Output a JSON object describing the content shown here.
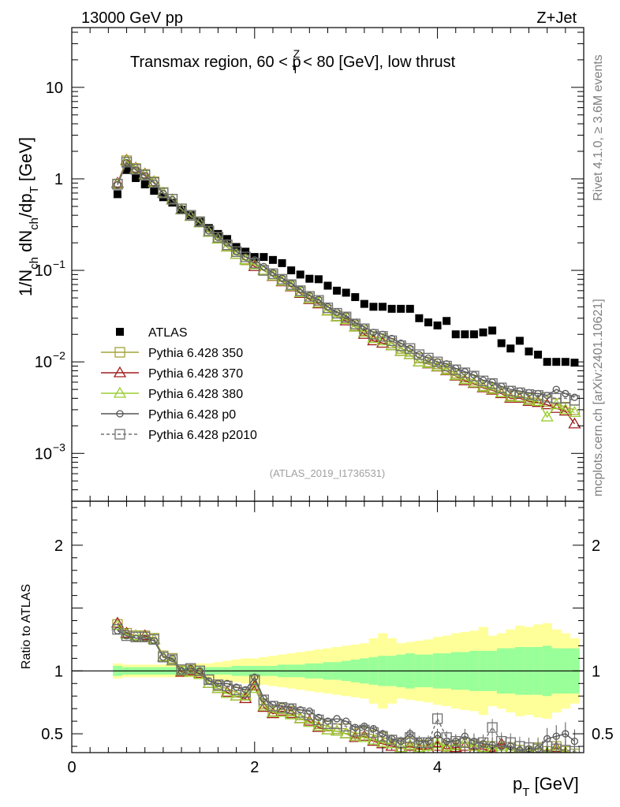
{
  "header": {
    "energy": "13000 GeV pp",
    "process": "Z+Jet"
  },
  "side_labels": {
    "rivet": "Rivet 4.1.0, ≥ 3.6M events",
    "mcplots": "mcplots.cern.ch [arXiv:2401.10621]"
  },
  "chart_data": [
    {
      "type": "scatter",
      "title": "Transmax region, 60 < p_T^Z < 80 [GeV], low thrust",
      "title_parts": [
        "Transmax region, 60 < p",
        "Z",
        "T",
        " < 80 [GeV], low thrust"
      ],
      "ylabel": "1/N_ch dN_ch/dp_T [GeV]",
      "ylabel_parts": [
        "1/N",
        "ch",
        " dN",
        "ch",
        "/dp",
        "T",
        " [GeV]"
      ],
      "xlim": [
        0,
        5.6
      ],
      "ylim": [
        0.0003,
        45
      ],
      "yscale": "log",
      "y_ticks": [
        {
          "v": 10,
          "label": "10"
        },
        {
          "v": 1,
          "label": "1"
        },
        {
          "v": 0.1,
          "label": "10",
          "exp": "−1"
        },
        {
          "v": 0.01,
          "label": "10",
          "exp": "−2"
        },
        {
          "v": 0.001,
          "label": "10",
          "exp": "−3"
        }
      ],
      "x": [
        0.5,
        0.6,
        0.7,
        0.8,
        0.9,
        1.0,
        1.1,
        1.2,
        1.3,
        1.4,
        1.5,
        1.6,
        1.7,
        1.8,
        1.9,
        2.0,
        2.1,
        2.2,
        2.3,
        2.4,
        2.5,
        2.6,
        2.7,
        2.8,
        2.9,
        3.0,
        3.1,
        3.2,
        3.3,
        3.4,
        3.5,
        3.6,
        3.7,
        3.8,
        3.9,
        4.0,
        4.1,
        4.2,
        4.3,
        4.4,
        4.5,
        4.6,
        4.7,
        4.8,
        4.9,
        5.0,
        5.1,
        5.2,
        5.3,
        5.4,
        5.5
      ],
      "series": [
        {
          "name": "ATLAS",
          "color": "#000000",
          "marker": "filled-square",
          "values": [
            0.68,
            1.25,
            1.02,
            0.87,
            0.74,
            0.63,
            0.55,
            0.46,
            0.4,
            0.34,
            0.29,
            0.25,
            0.22,
            0.18,
            0.16,
            0.14,
            0.14,
            0.13,
            0.12,
            0.1,
            0.09,
            0.081,
            0.08,
            0.068,
            0.06,
            0.057,
            0.051,
            0.043,
            0.04,
            0.04,
            0.038,
            0.038,
            0.038,
            0.03,
            0.027,
            0.025,
            0.028,
            0.02,
            0.02,
            0.02,
            0.021,
            0.022,
            0.016,
            0.014,
            0.017,
            0.013,
            0.012,
            0.01,
            0.01,
            0.01,
            0.0098
          ]
        },
        {
          "name": "Pythia 6.428 350",
          "color": "#a3a33a",
          "marker": "open-square",
          "values": [
            0.88,
            1.58,
            1.3,
            1.12,
            0.93,
            0.71,
            0.6,
            0.47,
            0.4,
            0.34,
            0.27,
            0.23,
            0.19,
            0.16,
            0.13,
            0.12,
            0.1,
            0.088,
            0.077,
            0.068,
            0.058,
            0.05,
            0.045,
            0.037,
            0.032,
            0.03,
            0.025,
            0.022,
            0.019,
            0.018,
            0.016,
            0.014,
            0.013,
            0.011,
            0.01,
            0.0095,
            0.0085,
            0.0075,
            0.0068,
            0.0063,
            0.0055,
            0.0052,
            0.0047,
            0.0043,
            0.0042,
            0.004,
            0.004,
            0.0037,
            0.0035,
            0.0032,
            0.003
          ]
        },
        {
          "name": "Pythia 6.428 370",
          "color": "#a01e1e",
          "marker": "open-triangle",
          "values": [
            0.9,
            1.6,
            1.31,
            1.13,
            0.93,
            0.7,
            0.59,
            0.46,
            0.39,
            0.33,
            0.26,
            0.22,
            0.18,
            0.15,
            0.13,
            0.11,
            0.1,
            0.086,
            0.075,
            0.066,
            0.056,
            0.048,
            0.043,
            0.036,
            0.031,
            0.028,
            0.024,
            0.02,
            0.017,
            0.016,
            0.015,
            0.013,
            0.012,
            0.01,
            0.0095,
            0.0088,
            0.008,
            0.007,
            0.0062,
            0.0058,
            0.0052,
            0.0049,
            0.0045,
            0.004,
            0.004,
            0.0037,
            0.0036,
            0.0034,
            0.0031,
            0.0029,
            0.0021
          ]
        },
        {
          "name": "Pythia 6.428 380",
          "color": "#9acd32",
          "marker": "open-triangle",
          "values": [
            0.88,
            1.57,
            1.29,
            1.11,
            0.92,
            0.7,
            0.59,
            0.46,
            0.39,
            0.33,
            0.26,
            0.22,
            0.18,
            0.15,
            0.13,
            0.115,
            0.1,
            0.087,
            0.076,
            0.067,
            0.057,
            0.049,
            0.044,
            0.036,
            0.031,
            0.029,
            0.024,
            0.021,
            0.018,
            0.017,
            0.015,
            0.013,
            0.012,
            0.01,
            0.0096,
            0.0089,
            0.0081,
            0.0071,
            0.0064,
            0.0059,
            0.0053,
            0.005,
            0.0046,
            0.0041,
            0.0041,
            0.0038,
            0.0037,
            0.0025,
            0.0034,
            0.003,
            0.0028
          ]
        },
        {
          "name": "Pythia 6.428 p0",
          "color": "#555555",
          "marker": "open-circle",
          "values": [
            0.86,
            1.5,
            1.25,
            1.08,
            0.9,
            0.69,
            0.59,
            0.47,
            0.4,
            0.34,
            0.27,
            0.23,
            0.2,
            0.16,
            0.14,
            0.13,
            0.11,
            0.094,
            0.082,
            0.072,
            0.062,
            0.053,
            0.048,
            0.04,
            0.035,
            0.032,
            0.027,
            0.024,
            0.021,
            0.02,
            0.018,
            0.016,
            0.014,
            0.012,
            0.011,
            0.01,
            0.0095,
            0.0085,
            0.0078,
            0.0072,
            0.0063,
            0.006,
            0.0054,
            0.005,
            0.0048,
            0.0046,
            0.0045,
            0.0043,
            0.005,
            0.0045,
            0.0041
          ]
        },
        {
          "name": "Pythia 6.428 p2010",
          "color": "#707070",
          "marker": "open-square",
          "dashed": true,
          "values": [
            0.87,
            1.52,
            1.27,
            1.1,
            0.91,
            0.7,
            0.6,
            0.47,
            0.4,
            0.34,
            0.27,
            0.23,
            0.19,
            0.16,
            0.14,
            0.12,
            0.1,
            0.092,
            0.08,
            0.07,
            0.06,
            0.052,
            0.047,
            0.039,
            0.034,
            0.031,
            0.026,
            0.023,
            0.02,
            0.019,
            0.017,
            0.015,
            0.014,
            0.012,
            0.011,
            0.01,
            0.009,
            0.0082,
            0.0076,
            0.007,
            0.0062,
            0.0058,
            0.0052,
            0.0048,
            0.0046,
            0.0044,
            0.0043,
            0.0041,
            0.004,
            0.004,
            0.0038
          ]
        }
      ],
      "watermark": "(ATLAS_2019_I1736531)"
    },
    {
      "type": "line",
      "ylabel": "Ratio to ATLAS",
      "xlabel": "p_T [GeV]",
      "xlabel_parts": [
        "p",
        "T",
        " [GeV]"
      ],
      "xlim": [
        0,
        5.6
      ],
      "ylim": [
        0.35,
        2.35
      ],
      "x_ticks": [
        {
          "v": 0,
          "label": "0"
        },
        {
          "v": 2,
          "label": "2"
        },
        {
          "v": 4,
          "label": "4"
        }
      ],
      "y_ticks": [
        {
          "v": 0.5,
          "label": "0.5"
        },
        {
          "v": 1,
          "label": "1"
        },
        {
          "v": 2,
          "label": "2"
        }
      ],
      "reference_line": 1.0,
      "band_stat_halfwidth": [
        0.04,
        0.03,
        0.03,
        0.03,
        0.03,
        0.03,
        0.03,
        0.03,
        0.03,
        0.03,
        0.03,
        0.03,
        0.03,
        0.04,
        0.04,
        0.04,
        0.04,
        0.04,
        0.05,
        0.05,
        0.05,
        0.06,
        0.06,
        0.07,
        0.07,
        0.08,
        0.09,
        0.1,
        0.11,
        0.12,
        0.12,
        0.13,
        0.14,
        0.13,
        0.13,
        0.14,
        0.14,
        0.15,
        0.15,
        0.16,
        0.16,
        0.16,
        0.18,
        0.18,
        0.19,
        0.19,
        0.19,
        0.2,
        0.18,
        0.18,
        0.18
      ],
      "band_total_halfwidth": [
        0.06,
        0.05,
        0.05,
        0.05,
        0.05,
        0.05,
        0.05,
        0.05,
        0.05,
        0.06,
        0.06,
        0.07,
        0.08,
        0.09,
        0.1,
        0.1,
        0.11,
        0.12,
        0.13,
        0.14,
        0.15,
        0.16,
        0.17,
        0.18,
        0.19,
        0.2,
        0.21,
        0.22,
        0.26,
        0.3,
        0.26,
        0.22,
        0.23,
        0.24,
        0.25,
        0.27,
        0.28,
        0.3,
        0.31,
        0.32,
        0.35,
        0.28,
        0.3,
        0.33,
        0.36,
        0.35,
        0.37,
        0.38,
        0.33,
        0.3,
        0.26
      ],
      "series": [
        {
          "name": "Pythia 6.428 350",
          "values": [
            1.37,
            1.3,
            1.28,
            1.28,
            1.26,
            1.12,
            1.1,
            1.0,
            1.01,
            1.0,
            0.93,
            0.88,
            0.86,
            0.83,
            0.81,
            0.92,
            0.74,
            0.68,
            0.7,
            0.68,
            0.65,
            0.62,
            0.58,
            0.56,
            0.54,
            0.54,
            0.5,
            0.51,
            0.49,
            0.47,
            0.45,
            0.42,
            0.43,
            0.41,
            0.41,
            0.43,
            0.4,
            0.41,
            0.43,
            0.41,
            0.4,
            0.4,
            0.38,
            0.39,
            0.37,
            0.36,
            0.39,
            0.36,
            0.4,
            0.36,
            0.34
          ]
        },
        {
          "name": "Pythia 6.428 370",
          "values": [
            1.38,
            1.3,
            1.28,
            1.28,
            1.25,
            1.11,
            1.08,
            0.99,
            1.0,
            0.98,
            0.9,
            0.86,
            0.83,
            0.8,
            0.78,
            0.88,
            0.71,
            0.66,
            0.68,
            0.66,
            0.62,
            0.6,
            0.55,
            0.53,
            0.52,
            0.5,
            0.47,
            0.48,
            0.44,
            0.42,
            0.4,
            0.39,
            0.4,
            0.38,
            0.38,
            0.4,
            0.38,
            0.39,
            0.4,
            0.37,
            0.38,
            0.35,
            0.42,
            0.37,
            0.36,
            0.35,
            0.38,
            0.34,
            0.39,
            0.35,
            0.3
          ]
        },
        {
          "name": "Pythia 6.428 380",
          "values": [
            1.36,
            1.29,
            1.28,
            1.27,
            1.25,
            1.11,
            1.08,
            1.0,
            0.99,
            0.97,
            0.9,
            0.86,
            0.82,
            0.8,
            0.8,
            0.86,
            0.72,
            0.67,
            0.67,
            0.65,
            0.62,
            0.59,
            0.56,
            0.53,
            0.52,
            0.5,
            0.48,
            0.47,
            0.45,
            0.43,
            0.42,
            0.39,
            0.41,
            0.39,
            0.4,
            0.42,
            0.4,
            0.41,
            0.43,
            0.4,
            0.39,
            0.38,
            0.4,
            0.37,
            0.36,
            0.35,
            0.38,
            0.35,
            0.38,
            0.35,
            0.33
          ]
        },
        {
          "name": "Pythia 6.428 p0",
          "values": [
            1.32,
            1.28,
            1.26,
            1.26,
            1.24,
            1.11,
            1.1,
            1.0,
            1.02,
            1.0,
            0.92,
            0.9,
            0.9,
            0.87,
            0.85,
            0.95,
            0.78,
            0.73,
            0.72,
            0.71,
            0.69,
            0.68,
            0.63,
            0.6,
            0.62,
            0.6,
            0.55,
            0.56,
            0.54,
            0.5,
            0.46,
            0.44,
            0.5,
            0.44,
            0.44,
            0.49,
            0.44,
            0.44,
            0.48,
            0.44,
            0.42,
            0.41,
            0.4,
            0.4,
            0.37,
            0.38,
            0.38,
            0.46,
            0.48,
            0.5,
            0.44
          ]
        },
        {
          "name": "Pythia 6.428 p2010",
          "values": [
            1.33,
            1.28,
            1.27,
            1.27,
            1.25,
            1.11,
            1.09,
            1.01,
            1.02,
            1.0,
            0.93,
            0.89,
            0.88,
            0.85,
            0.83,
            0.93,
            0.77,
            0.72,
            0.71,
            0.7,
            0.67,
            0.65,
            0.61,
            0.58,
            0.58,
            0.56,
            0.52,
            0.53,
            0.51,
            0.48,
            0.45,
            0.43,
            0.47,
            0.43,
            0.43,
            0.62,
            0.47,
            0.44,
            0.43,
            0.42,
            0.43,
            0.55,
            0.44,
            0.43,
            0.4,
            0.39,
            0.38,
            0.4,
            0.38,
            0.37,
            0.36
          ]
        }
      ]
    }
  ]
}
